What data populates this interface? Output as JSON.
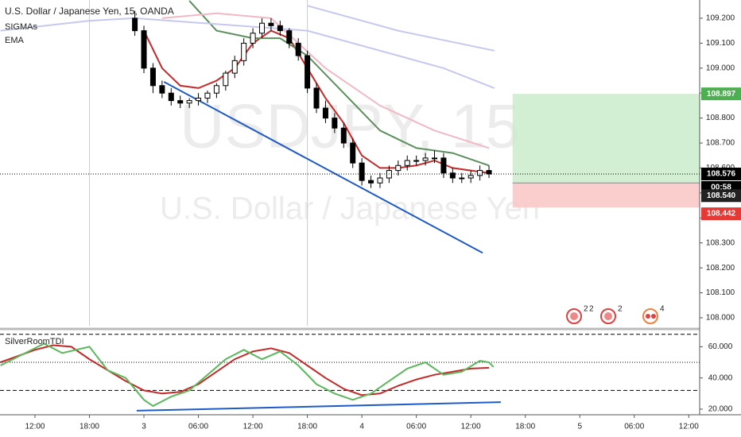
{
  "chart_data": [
    {
      "type": "candlestick",
      "title": "U.S. Dollar / Japanese Yen, 15, OANDA",
      "indicators": [
        "SIGMAs",
        "EMA"
      ],
      "watermark": [
        "USDJPY, 15",
        "U.S. Dollar / Japanese Yen"
      ],
      "x": [
        11,
        12,
        13,
        14,
        15,
        16,
        17,
        18,
        19,
        20,
        21,
        22,
        23,
        24,
        25,
        26,
        27,
        28,
        29,
        30,
        31,
        32,
        33,
        34,
        35,
        36,
        37,
        38,
        39,
        40,
        41,
        42,
        43,
        44,
        45,
        46,
        47,
        48,
        49,
        50
      ],
      "open": [
        109.2,
        109.15,
        109.0,
        108.93,
        108.9,
        108.87,
        108.86,
        108.87,
        108.88,
        108.9,
        108.93,
        108.98,
        109.03,
        109.1,
        109.14,
        109.18,
        109.17,
        109.15,
        109.1,
        109.05,
        108.92,
        108.84,
        108.8,
        108.76,
        108.7,
        108.62,
        108.55,
        108.54,
        108.56,
        108.59,
        108.61,
        108.63,
        108.63,
        108.64,
        108.64,
        108.58,
        108.56,
        108.56,
        108.57,
        108.59
      ],
      "high": [
        109.23,
        109.17,
        109.02,
        108.95,
        108.92,
        108.89,
        108.88,
        108.9,
        108.91,
        108.94,
        108.99,
        109.05,
        109.12,
        109.16,
        109.2,
        109.2,
        109.19,
        109.16,
        109.12,
        109.07,
        108.94,
        108.87,
        108.82,
        108.78,
        108.72,
        108.64,
        108.57,
        108.58,
        108.61,
        108.63,
        108.65,
        108.65,
        108.66,
        108.67,
        108.66,
        108.6,
        108.58,
        108.59,
        108.61,
        108.61
      ],
      "low": [
        109.13,
        108.98,
        108.9,
        108.88,
        108.85,
        108.84,
        108.84,
        108.85,
        108.86,
        108.88,
        108.91,
        108.96,
        109.01,
        109.08,
        109.12,
        109.15,
        109.13,
        109.08,
        109.03,
        108.9,
        108.82,
        108.78,
        108.74,
        108.68,
        108.6,
        108.53,
        108.52,
        108.52,
        108.54,
        108.57,
        108.59,
        108.61,
        108.61,
        108.62,
        108.56,
        108.54,
        108.54,
        108.54,
        108.55,
        108.56
      ],
      "close": [
        109.15,
        109.0,
        108.93,
        108.9,
        108.87,
        108.86,
        108.87,
        108.88,
        108.9,
        108.93,
        108.98,
        109.03,
        109.1,
        109.14,
        109.18,
        109.17,
        109.15,
        109.1,
        109.05,
        108.92,
        108.84,
        108.8,
        108.76,
        108.7,
        108.62,
        108.55,
        108.54,
        108.56,
        108.59,
        108.61,
        108.63,
        108.63,
        108.64,
        108.64,
        108.58,
        108.56,
        108.56,
        108.57,
        108.59,
        108.576
      ],
      "series": [
        {
          "color": "#c62828",
          "x": [
            12,
            14,
            16,
            18,
            20,
            22,
            24,
            26,
            28,
            30,
            32,
            34,
            36,
            38,
            40,
            42,
            44,
            46,
            48,
            50
          ],
          "values": [
            109.15,
            109.0,
            108.93,
            108.92,
            108.95,
            109.0,
            109.1,
            109.15,
            109.12,
            109.0,
            108.88,
            108.78,
            108.65,
            108.6,
            108.6,
            108.61,
            108.63,
            108.6,
            108.59,
            108.58
          ]
        },
        {
          "color": "#5b8f5b",
          "x": [
            17,
            20,
            24,
            27,
            30,
            34,
            38,
            42,
            46,
            50
          ],
          "values": [
            109.27,
            109.15,
            109.12,
            109.12,
            109.05,
            108.9,
            108.75,
            108.68,
            108.66,
            108.61
          ]
        },
        {
          "color": "#f2b8c6",
          "x": [
            14,
            20,
            26,
            32,
            38,
            44,
            50
          ],
          "values": [
            109.2,
            109.22,
            109.2,
            109.0,
            108.85,
            108.75,
            108.68
          ]
        },
        {
          "color": "#c5c8f0",
          "x": [
            -3.8,
            6,
            11,
            30,
            45,
            50.6
          ],
          "values": [
            109.15,
            109.19,
            109.2,
            109.15,
            109.0,
            108.92
          ]
        },
        {
          "color": "#c5c8f0",
          "x": [
            30,
            40,
            50.6
          ],
          "values": [
            109.25,
            109.15,
            109.07
          ]
        }
      ],
      "trendline": {
        "color": "#1e5ac8",
        "x": [
          14.2,
          49.3
        ],
        "values": [
          108.945,
          108.26
        ]
      },
      "position": {
        "x_start": 52.6,
        "target": {
          "value": 108.897,
          "label": "108.897"
        },
        "entry": {
          "value": 108.54,
          "label": "108.540"
        },
        "stop": {
          "value": 108.442,
          "label": "108.442"
        }
      },
      "current": {
        "value": 108.576,
        "label": "108.576"
      },
      "countdown": "00:58",
      "vlines": [
        6,
        30
      ],
      "xlim": [
        -3.85,
        73.2
      ],
      "xticks": [
        {
          "value": 0,
          "label": "12:00"
        },
        {
          "value": 6,
          "label": "18:00"
        },
        {
          "value": 12,
          "label": "3"
        },
        {
          "value": 18,
          "label": "06:00"
        },
        {
          "value": 24,
          "label": "12:00"
        },
        {
          "value": 30,
          "label": "18:00"
        },
        {
          "value": 36,
          "label": "4"
        },
        {
          "value": 42,
          "label": "06:00"
        },
        {
          "value": 48,
          "label": "12:00"
        },
        {
          "value": 54,
          "label": "18:00"
        },
        {
          "value": 60,
          "label": "5"
        },
        {
          "value": 66,
          "label": "06:00"
        },
        {
          "value": 72,
          "label": "12:00"
        }
      ],
      "ylim": [
        107.968,
        109.273
      ],
      "yticks": [
        {
          "value": 108.0,
          "label": "108.000"
        },
        {
          "value": 108.1,
          "label": "108.100"
        },
        {
          "value": 108.2,
          "label": "108.200"
        },
        {
          "value": 108.3,
          "label": "108.300"
        },
        {
          "value": 108.4,
          "label": "108.400"
        },
        {
          "value": 108.5,
          "label": "108.500"
        },
        {
          "value": 108.6,
          "label": "108.600"
        },
        {
          "value": 108.7,
          "label": "108.700"
        },
        {
          "value": 108.8,
          "label": "108.800"
        },
        {
          "value": 108.9,
          "label": "108.900"
        },
        {
          "value": 109.0,
          "label": "109.000"
        },
        {
          "value": 109.1,
          "label": "109.100"
        },
        {
          "value": 109.2,
          "label": "109.200"
        }
      ],
      "events": [
        "2",
        "2",
        "2",
        "4"
      ]
    },
    {
      "type": "line",
      "title": "SilverRoomTDI",
      "series": [
        {
          "color": "#c62828",
          "x": [
            -3.8,
            0,
            2,
            4,
            6,
            8,
            10,
            12,
            14,
            16,
            18,
            20,
            22,
            24,
            26,
            28,
            30,
            32,
            34,
            36,
            38,
            40,
            42,
            44,
            46,
            48,
            50
          ],
          "values": [
            50,
            58,
            61,
            60,
            52,
            45,
            38,
            32,
            30,
            31,
            36,
            44,
            52,
            57,
            59,
            56,
            48,
            40,
            33,
            29,
            30,
            35,
            39,
            42,
            44,
            46,
            46.5
          ]
        },
        {
          "color": "#5cb85c",
          "x": [
            -3.8,
            1,
            3,
            6,
            8,
            10,
            12,
            13,
            15,
            17,
            19,
            21,
            23,
            25,
            27,
            29,
            31,
            33,
            35,
            37,
            39,
            41,
            43,
            45,
            47,
            49,
            50,
            50.5
          ],
          "values": [
            48,
            62,
            56,
            60,
            45,
            40,
            26,
            22,
            28,
            32,
            42,
            52,
            58,
            52,
            57,
            48,
            36,
            30,
            26,
            30,
            38,
            46,
            50,
            42,
            44,
            51,
            50,
            47
          ]
        }
      ],
      "trendline": {
        "color": "#1e5ac8",
        "x": [
          11.2,
          51.3
        ],
        "values": [
          19,
          24.5
        ]
      },
      "levels": {
        "dashed": [
          68,
          32
        ],
        "dotted": [
          50
        ]
      },
      "ylim": [
        16.4,
        70.4
      ],
      "yticks": [
        {
          "value": 20,
          "label": "20.000"
        },
        {
          "value": 40,
          "label": "40.000"
        },
        {
          "value": 60,
          "label": "60.000"
        }
      ]
    }
  ]
}
